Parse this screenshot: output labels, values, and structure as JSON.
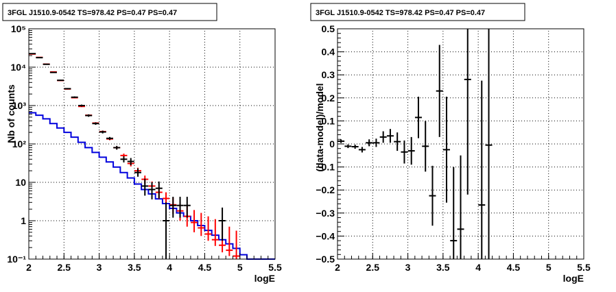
{
  "chart_data": [
    {
      "type": "line",
      "title": "3FGL J1510.9-0542 TS=978.42 PS=0.47 PS=0.47",
      "xlabel": "logE",
      "ylabel": "Nb of counts",
      "xlim": [
        2,
        5.5
      ],
      "ylim": [
        0.1,
        100000
      ],
      "yscale": "log",
      "grid": true,
      "x_ticks": [
        "2",
        "2.5",
        "3",
        "3.5",
        "4",
        "4.5",
        "5",
        "5.5"
      ],
      "y_ticks": [
        "10⁻¹",
        "1",
        "10",
        "10²",
        "10³",
        "10⁴",
        "10⁵"
      ],
      "colors": {
        "data": "#000000",
        "model": "#ff0000",
        "background": "#0000dd"
      },
      "series": [
        {
          "kind": "step",
          "color": "#0000dd",
          "bin_edges": [
            2,
            2.1,
            2.2,
            2.3,
            2.4,
            2.5,
            2.6,
            2.7,
            2.8,
            2.9,
            3.0,
            3.1,
            3.2,
            3.3,
            3.4,
            3.5,
            3.6,
            3.7,
            3.8,
            3.9,
            4.0,
            4.1,
            4.2,
            4.3,
            4.4,
            4.5,
            4.6,
            4.7,
            4.8,
            4.9,
            5.0,
            5.1,
            5.2,
            5.3,
            5.4,
            5.5
          ],
          "values": [
            650,
            560,
            450,
            340,
            260,
            200,
            150,
            110,
            80,
            60,
            45,
            34,
            25,
            18,
            13,
            9,
            6.5,
            5,
            3.7,
            2.8,
            2.1,
            1.6,
            1.3,
            1,
            0.75,
            0.56,
            0.42,
            0.32,
            0.25,
            0.19,
            0.13,
            0.1,
            0.1,
            0.1,
            0.1
          ]
        },
        {
          "kind": "points",
          "color": "#ff0000",
          "x": [
            2.05,
            2.15,
            2.25,
            2.35,
            2.45,
            2.55,
            2.65,
            2.75,
            2.85,
            2.95,
            3.05,
            3.15,
            3.25,
            3.35,
            3.45,
            3.55,
            3.65,
            3.75,
            3.85,
            3.95,
            4.05,
            4.15,
            4.25,
            4.35,
            4.45,
            4.55,
            4.65,
            4.75,
            4.85,
            4.95
          ],
          "y": [
            22000,
            18000,
            12000,
            7500,
            4500,
            2700,
            1600,
            950,
            560,
            350,
            210,
            135,
            80,
            50,
            31,
            20,
            12,
            8,
            5.5,
            3.8,
            2.6,
            1.8,
            1.3,
            0.9,
            0.65,
            0.45,
            0.32,
            0.23,
            0.17,
            0.12
          ],
          "yerr_low": [
            21800,
            17800,
            11800,
            7350,
            4400,
            2630,
            1550,
            915,
            535,
            332,
            197,
            125,
            72,
            44,
            26,
            16,
            9,
            5.8,
            3.7,
            2.4,
            1.5,
            1,
            0.7,
            0.5,
            0.4,
            0.3,
            0.22,
            0.15,
            0.12,
            0.1
          ],
          "yerr_high": [
            22200,
            18200,
            12200,
            7650,
            4600,
            2770,
            1650,
            985,
            585,
            368,
            223,
            145,
            88,
            56,
            36,
            24,
            15,
            10.5,
            7.5,
            5.5,
            4,
            3,
            2.4,
            1.9,
            1.6,
            1.3,
            1.1,
            0.9,
            0.7,
            0.55
          ]
        },
        {
          "kind": "points",
          "color": "#000000",
          "x": [
            2.05,
            2.15,
            2.25,
            2.35,
            2.45,
            2.55,
            2.65,
            2.75,
            2.85,
            2.95,
            3.05,
            3.15,
            3.25,
            3.35,
            3.45,
            3.55,
            3.65,
            3.75,
            3.85,
            3.95,
            4.05,
            4.15,
            4.25,
            4.75
          ],
          "y": [
            22500,
            17700,
            11900,
            7300,
            4550,
            2750,
            1650,
            1000,
            550,
            340,
            205,
            140,
            80,
            40,
            35,
            18,
            8,
            6.5,
            7,
            1,
            2.5,
            2.5,
            2.5,
            1
          ],
          "yerr_low": [
            22200,
            17400,
            11650,
            7100,
            4400,
            2640,
            1570,
            940,
            510,
            315,
            188,
            128,
            71,
            33,
            28,
            14,
            4.5,
            3.6,
            3.8,
            0.1,
            1.2,
            1.2,
            1.2,
            0.3
          ],
          "yerr_high": [
            22800,
            18000,
            12150,
            7500,
            4700,
            2860,
            1730,
            1060,
            590,
            365,
            222,
            152,
            89,
            48,
            43,
            23,
            12.5,
            10,
            10.5,
            3,
            4.2,
            4.2,
            4.2,
            2.2
          ]
        }
      ]
    },
    {
      "type": "scatter",
      "title": "3FGL J1510.9-0542 TS=978.42 PS=0.47 PS=0.47",
      "xlabel": "logE",
      "ylabel": "(data-model)/model",
      "xlim": [
        2,
        5.5
      ],
      "ylim": [
        -0.5,
        0.5
      ],
      "grid": true,
      "x_ticks": [
        "2",
        "2.5",
        "3",
        "3.5",
        "4",
        "4.5",
        "5",
        "5.5"
      ],
      "y_ticks": [
        "−0.5",
        "−0.4",
        "−0.3",
        "−0.2",
        "−0.1",
        "0",
        "0.1",
        "0.2",
        "0.3",
        "0.4",
        "0.5"
      ],
      "series": [
        {
          "color": "#000000",
          "x": [
            2.05,
            2.15,
            2.25,
            2.35,
            2.45,
            2.55,
            2.65,
            2.75,
            2.85,
            2.95,
            3.05,
            3.15,
            3.25,
            3.35,
            3.45,
            3.55,
            3.65,
            3.75,
            3.85,
            4.05,
            4.15
          ],
          "y": [
            0.012,
            -0.01,
            -0.012,
            -0.025,
            0.005,
            0.005,
            0.03,
            0.035,
            0.01,
            -0.035,
            -0.03,
            0.115,
            -0.01,
            -0.225,
            0.23,
            -0.025,
            -0.42,
            -0.37,
            0.28,
            -0.265,
            -0.005
          ],
          "err": [
            0.008,
            0.008,
            0.009,
            0.012,
            0.015,
            0.018,
            0.025,
            0.03,
            0.04,
            0.05,
            0.06,
            0.09,
            0.11,
            0.13,
            0.2,
            0.23,
            0.32,
            0.32,
            0.5,
            0.54,
            0.6
          ]
        }
      ]
    }
  ]
}
